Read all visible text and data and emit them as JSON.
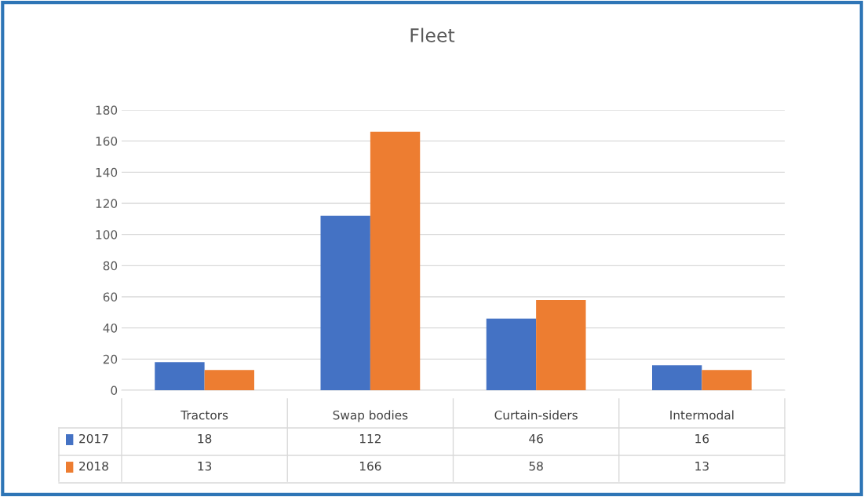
{
  "chart_data": {
    "type": "bar",
    "title": "Fleet",
    "categories": [
      "Tractors",
      "Swap bodies",
      "Curtain-siders",
      "Intermodal"
    ],
    "series": [
      {
        "name": "2017",
        "color": "#4472c4",
        "values": [
          18,
          112,
          46,
          16
        ]
      },
      {
        "name": "2018",
        "color": "#ed7d31",
        "values": [
          13,
          166,
          58,
          13
        ]
      }
    ],
    "ylim": [
      0,
      180
    ],
    "yticks": [
      0,
      20,
      40,
      60,
      80,
      100,
      120,
      140,
      160,
      180
    ],
    "grid": "y",
    "legend": "bottom",
    "data_labels": true
  }
}
